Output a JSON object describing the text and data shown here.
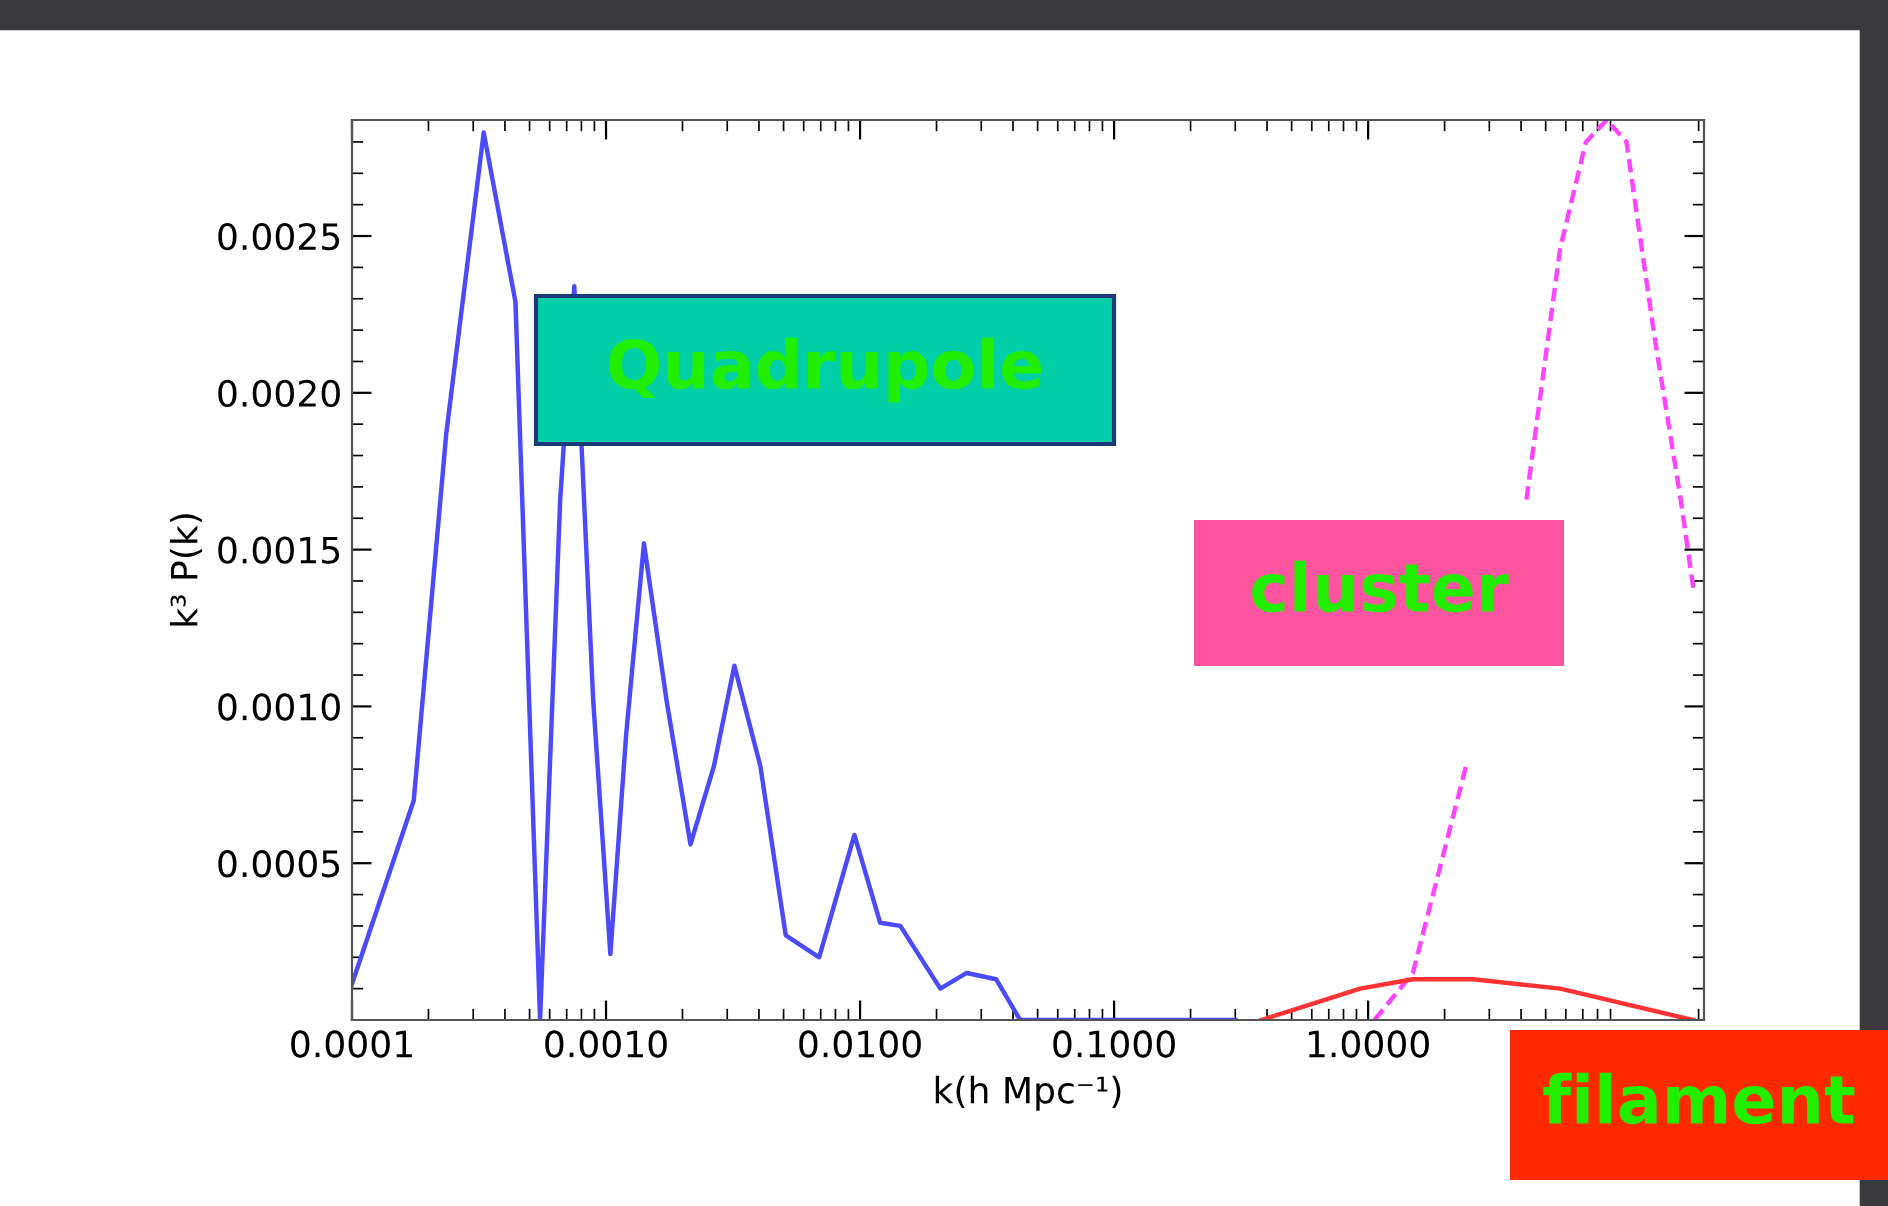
{
  "chart_data": {
    "type": "line",
    "xlabel": "k(h Mpc⁻¹)",
    "ylabel": "k³ P(k)",
    "log": "x",
    "xlim": [
      0.0001,
      21
    ],
    "ylim": [
      0,
      0.00287
    ],
    "xticks": [
      {
        "value": 0.0001,
        "label": "0.0001"
      },
      {
        "value": 0.001,
        "label": "0.0010"
      },
      {
        "value": 0.01,
        "label": "0.0100"
      },
      {
        "value": 0.1,
        "label": "0.1000"
      },
      {
        "value": 1,
        "label": "1.0000"
      }
    ],
    "yticks": [
      0.0005,
      {
        "value": 0.001,
        "label": "0.0010"
      },
      0.0015,
      {
        "value": 0.002,
        "label": "0.0020"
      },
      0.0025
    ],
    "grid": false,
    "series": [
      {
        "name": "Quadrupole",
        "color": "#4a4aff",
        "line_style": "solid",
        "x": [
          0.0001,
          0.000175,
          0.000235,
          0.00033,
          0.00044,
          0.00055,
          0.00066,
          0.00075,
          0.00089,
          0.00104,
          0.0012,
          0.00141,
          0.00173,
          0.00215,
          0.00266,
          0.0032,
          0.00405,
          0.0051,
          0.0069,
          0.0095,
          0.012,
          0.0144,
          0.0207,
          0.0263,
          0.0343,
          0.0427,
          0.074,
          0.3
        ],
        "values": [
          0.000115,
          0.0007,
          0.00187,
          0.00283,
          0.00229,
          0,
          0.00166,
          0.00234,
          0.00102,
          0.00021,
          0.00091,
          0.00152,
          0.00102,
          0.00056,
          0.00081,
          0.00113,
          0.00081,
          0.00027,
          0.0002,
          0.00059,
          0.00031,
          0.0003,
          0.0001,
          0.00015,
          0.00013,
          0,
          0,
          0
        ]
      },
      {
        "name": "cluster",
        "color": "#ff44ff",
        "line_style": "dashed",
        "x": [
          1.06,
          1.5,
          2.43,
          3.5,
          4.2,
          5.7,
          7.2,
          8.7,
          10.4,
          13.4,
          17,
          19.2
        ],
        "values": [
          0,
          0.00015,
          0.00081,
          null,
          0.00166,
          0.00246,
          0.0028,
          0.00287,
          0.0028,
          0.00218,
          0.00166,
          0.00136
        ]
      },
      {
        "name": "filament",
        "color": "#ff3333",
        "line_style": "solid",
        "x": [
          0.38,
          0.93,
          1.5,
          2.6,
          5.7,
          19
        ],
        "values": [
          0,
          0.0001,
          0.00013,
          0.00013,
          0.0001,
          0
        ]
      }
    ]
  }
}
